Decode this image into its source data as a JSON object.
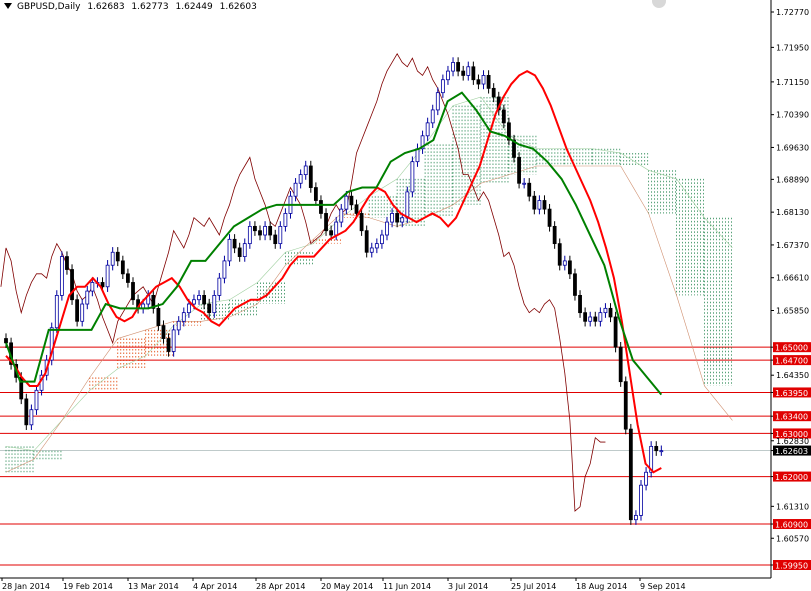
{
  "header": {
    "symbol": "GBPUSD,Daily",
    "open": "1.62683",
    "high": "1.62773",
    "low": "1.62449",
    "close": "1.62603"
  },
  "icons": {
    "collapse": "chevron-down-icon",
    "corner": "one-click-trading-icon"
  },
  "colors": {
    "background": "#ffffff",
    "bull_candle": "#0000a0",
    "bear_candle": "#000000",
    "tenkan": "#ff0000",
    "kijun": "#008000",
    "chikou": "#800000",
    "cloud_bull": "#2e8b57",
    "cloud_bear": "#e04000",
    "level_line": "#e00000",
    "level_label_bg": "#e00000",
    "current_label_bg": "#000000"
  },
  "chart_data": {
    "type": "candlestick",
    "symbol": "GBPUSD",
    "timeframe": "Daily",
    "indicators": [
      "Ichimoku Kinko Hyo"
    ],
    "ylim": [
      1.5995,
      1.7277
    ],
    "y_ticks": [
      "1.72770",
      "1.71950",
      "1.71150",
      "1.70390",
      "1.69630",
      "1.68890",
      "1.68130",
      "1.67370",
      "1.66610",
      "1.65850",
      "1.65000",
      "1.64700",
      "1.64350",
      "1.63950",
      "1.63400",
      "1.63000",
      "1.62830",
      "1.62603",
      "1.62000",
      "1.61310",
      "1.60900",
      "1.60570",
      "1.59950"
    ],
    "x_labels": [
      "28 Jan 2014",
      "19 Feb 2014",
      "13 Mar 2014",
      "4 Apr 2014",
      "28 Apr 2014",
      "20 May 2014",
      "11 Jun 2014",
      "3 Jul 2014",
      "25 Jul 2014",
      "18 Aug 2014",
      "9 Sep 2014"
    ],
    "horizontal_levels": [
      1.65,
      1.647,
      1.6395,
      1.634,
      1.63,
      1.62,
      1.609,
      1.5995
    ],
    "level_labels": [
      "1.65000",
      "1.64700",
      "1.63950",
      "1.63400",
      "1.63000",
      "1.62000",
      "1.60900",
      "1.59950"
    ],
    "current_price": 1.62603,
    "current_price_label": "1.62603",
    "close_series": [
      1.651,
      1.646,
      1.643,
      1.638,
      1.632,
      1.6355,
      1.64,
      1.6435,
      1.647,
      1.6545,
      1.662,
      1.671,
      1.668,
      1.661,
      1.656,
      1.66,
      1.663,
      1.665,
      1.665,
      1.664,
      1.669,
      1.672,
      1.67,
      1.667,
      1.665,
      1.661,
      1.659,
      1.66,
      1.662,
      1.659,
      1.655,
      1.652,
      1.649,
      1.654,
      1.656,
      1.658,
      1.66,
      1.661,
      1.662,
      1.66,
      1.658,
      1.662,
      1.666,
      1.67,
      1.675,
      1.673,
      1.671,
      1.674,
      1.678,
      1.677,
      1.676,
      1.678,
      1.676,
      1.674,
      1.678,
      1.681,
      1.685,
      1.688,
      1.69,
      1.692,
      1.687,
      1.684,
      1.681,
      1.677,
      1.676,
      1.679,
      1.682,
      1.685,
      1.683,
      1.681,
      1.677,
      1.672,
      1.673,
      1.674,
      1.676,
      1.679,
      1.681,
      1.679,
      1.68,
      1.686,
      1.693,
      1.696,
      1.699,
      1.702,
      1.705,
      1.709,
      1.712,
      1.714,
      1.716,
      1.714,
      1.713,
      1.715,
      1.712,
      1.711,
      1.713,
      1.71,
      1.708,
      1.705,
      1.702,
      1.698,
      1.694,
      1.688,
      1.688,
      1.685,
      1.682,
      1.684,
      1.682,
      1.678,
      1.674,
      1.669,
      1.67,
      1.667,
      1.662,
      1.658,
      1.656,
      1.657,
      1.656,
      1.658,
      1.659,
      1.657,
      1.65,
      1.642,
      1.631,
      1.61,
      1.611,
      1.618,
      1.621,
      1.627,
      1.626,
      1.626
    ],
    "tenkan_series": [
      1.648,
      1.646,
      1.643,
      1.641,
      1.641,
      1.644,
      1.65,
      1.656,
      1.662,
      1.664,
      1.664,
      1.666,
      1.664,
      1.66,
      1.657,
      1.656,
      1.657,
      1.66,
      1.662,
      1.664,
      1.665,
      1.666,
      1.664,
      1.661,
      1.659,
      1.658,
      1.656,
      1.655,
      1.657,
      1.659,
      1.66,
      1.661,
      1.661,
      1.662,
      1.664,
      1.666,
      1.669,
      1.671,
      1.671,
      1.671,
      1.673,
      1.675,
      1.676,
      1.677,
      1.679,
      1.682,
      1.685,
      1.687,
      1.686,
      1.683,
      1.681,
      1.68,
      1.679,
      1.68,
      1.681,
      1.68,
      1.678,
      1.68,
      1.684,
      1.688,
      1.692,
      1.698,
      1.704,
      1.708,
      1.711,
      1.713,
      1.714,
      1.713,
      1.71,
      1.706,
      1.701,
      1.696,
      1.692,
      1.688,
      1.684,
      1.679,
      1.673,
      1.666,
      1.656,
      1.644,
      1.632,
      1.623,
      1.621,
      1.622
    ],
    "kijun_series": [
      1.651,
      1.642,
      1.642,
      1.654,
      1.654,
      1.654,
      1.654,
      1.66,
      1.659,
      1.659,
      1.659,
      1.66,
      1.664,
      1.67,
      1.67,
      1.674,
      1.678,
      1.68,
      1.682,
      1.683,
      1.683,
      1.683,
      1.683,
      1.683,
      1.686,
      1.687,
      1.687,
      1.693,
      1.695,
      1.696,
      1.698,
      1.707,
      1.709,
      1.705,
      1.7,
      1.699,
      1.697,
      1.696,
      1.693,
      1.689,
      1.683,
      1.676,
      1.669,
      1.657,
      1.647,
      1.643,
      1.639
    ],
    "chikou_note": "lagging span plotted 26 bars back",
    "senkou_a_series": [
      1.627,
      1.626,
      1.633,
      1.64,
      1.645,
      1.648,
      1.655,
      1.66,
      1.661,
      1.665,
      1.672,
      1.674,
      1.68,
      1.685,
      1.689,
      1.697,
      1.706,
      1.708,
      1.699,
      1.696,
      1.696,
      1.696,
      1.695,
      1.691,
      1.689,
      1.68,
      1.673
    ],
    "senkou_b_series": [
      1.621,
      1.624,
      1.633,
      1.643,
      1.652,
      1.654,
      1.656,
      1.656,
      1.657,
      1.66,
      1.669,
      1.675,
      1.681,
      1.68,
      1.678,
      1.68,
      1.683,
      1.688,
      1.69,
      1.692,
      1.692,
      1.692,
      1.692,
      1.681,
      1.662,
      1.641,
      1.633
    ],
    "grid": false,
    "legend": "none"
  }
}
